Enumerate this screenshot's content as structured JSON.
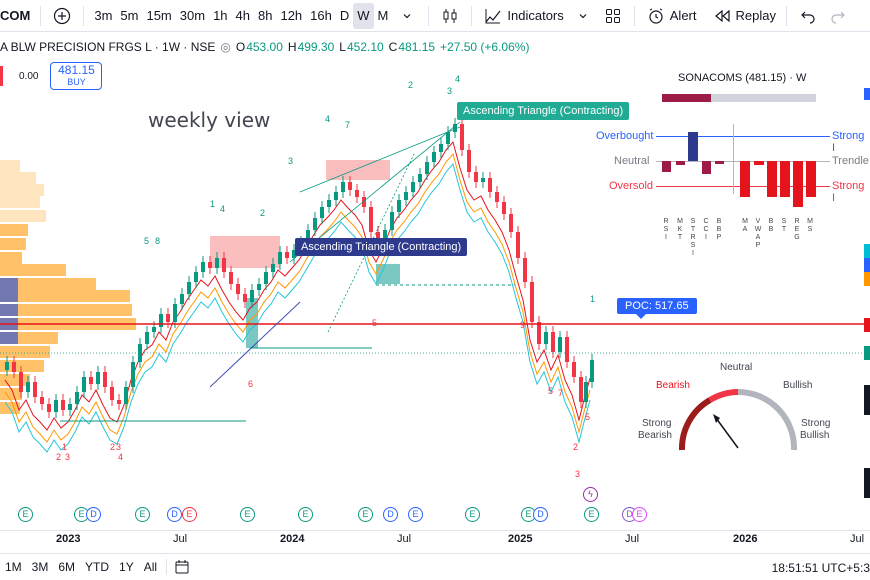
{
  "toolbar": {
    "symbol": "COM",
    "add_icon": "plus-circle-icon",
    "intervals": [
      "3m",
      "5m",
      "15m",
      "30m",
      "1h",
      "4h",
      "8h",
      "12h",
      "16h",
      "D",
      "W",
      "M"
    ],
    "active_interval": "W",
    "indicators_label": "Indicators",
    "alert_label": "Alert",
    "replay_label": "Replay"
  },
  "legend": {
    "title": "A BLW PRECISION FRGS L · 1W · NSE",
    "open_label": "O",
    "open": "453.00",
    "high_label": "H",
    "high": "499.30",
    "low_label": "L",
    "low": "452.10",
    "close_label": "C",
    "close": "481.15",
    "change": "+27.50 (+6.06%)"
  },
  "order": {
    "left_value": "0.00",
    "buy_price": "481.15",
    "buy_label": "BUY"
  },
  "annotations": {
    "weekly_view": "weekly view",
    "asc_triangle_top": "Ascending Triangle (Contracting)",
    "asc_triangle_mid": "Ascending Triangle (Contracting)",
    "poc": "POC: 517.65"
  },
  "sonacoms": {
    "title": "SONACOMS (481.15) · W",
    "overbought": "Overbought",
    "neutral": "Neutral",
    "oversold": "Oversold",
    "strong_right": "Strong I",
    "trendle": "Trendle",
    "strong_low": "Strong I",
    "bar_fill_fraction": 0.32,
    "columns": [
      "R S I",
      "M K T",
      "S T R S I",
      "C C I",
      "B B P",
      "M A",
      "V W A P",
      "B B",
      "S T",
      "R E G",
      "M S"
    ]
  },
  "gauge": {
    "neutral": "Neutral",
    "bearish": "Bearish",
    "bullish": "Bullish",
    "strong_bearish_1": "Strong",
    "strong_bearish_2": "Bearish",
    "strong_bullish_1": "Strong",
    "strong_bullish_2": "Bullish"
  },
  "xaxis": {
    "labels": [
      {
        "t": "2023",
        "bold": true
      },
      {
        "t": "Jul",
        "bold": false
      },
      {
        "t": "2024",
        "bold": true
      },
      {
        "t": "Jul",
        "bold": false
      },
      {
        "t": "2025",
        "bold": true
      },
      {
        "t": "Jul",
        "bold": false
      },
      {
        "t": "2026",
        "bold": true
      },
      {
        "t": "Jul",
        "bold": false
      }
    ]
  },
  "bottombar": {
    "ranges": [
      "1M",
      "3M",
      "6M",
      "YTD",
      "1Y",
      "All"
    ],
    "clock": "18:51:51 UTC+5:3"
  },
  "colors": {
    "up": "#089981",
    "down": "#f23645",
    "accent": "#2962ff",
    "poc_line": "#e5141c",
    "volume_profile": "#ffa726"
  }
}
